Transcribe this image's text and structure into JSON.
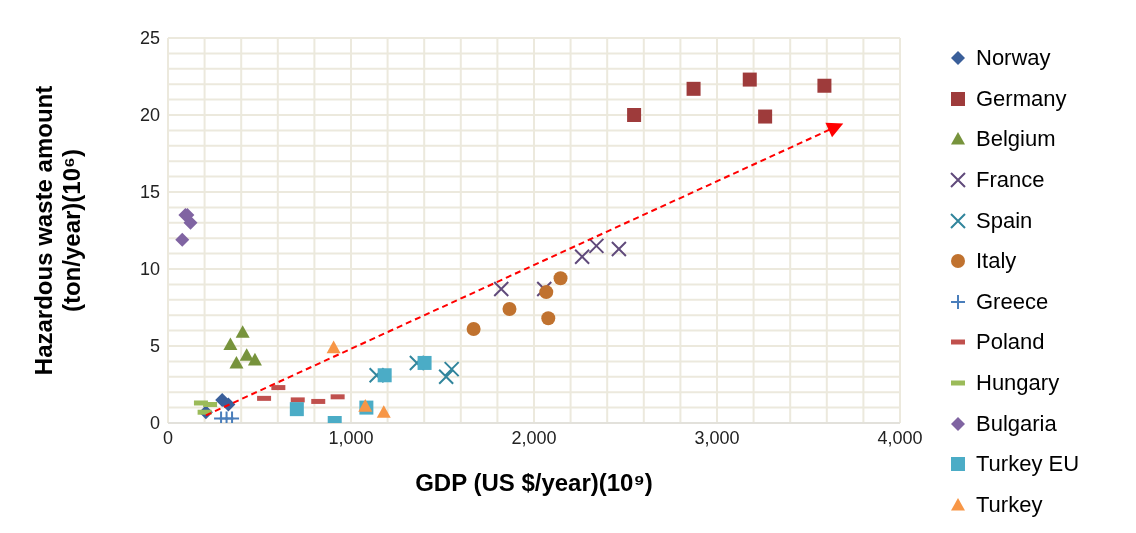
{
  "chart_data": {
    "type": "scatter",
    "xlabel": "GDP (US $/year)(10⁹)",
    "ylabel": "Hazardous waste  amount (ton/year)(10⁶)",
    "xlim": [
      0,
      4000
    ],
    "ylim": [
      0,
      25
    ],
    "xticks": [
      0,
      {
        "value": 200,
        "label": null
      },
      {
        "value": 400,
        "label": null
      },
      {
        "value": 600,
        "label": null
      },
      {
        "value": 800,
        "label": null
      },
      {
        "value": 1000,
        "label": "1,000"
      },
      {
        "value": 1200,
        "label": null
      },
      {
        "value": 1400,
        "label": null
      },
      {
        "value": 1600,
        "label": null
      },
      {
        "value": 1800,
        "label": null
      },
      {
        "value": 2000,
        "label": "2,000"
      },
      {
        "value": 2200,
        "label": null
      },
      {
        "value": 2400,
        "label": null
      },
      {
        "value": 2600,
        "label": null
      },
      {
        "value": 2800,
        "label": null
      },
      {
        "value": 3000,
        "label": "3,000"
      },
      {
        "value": 3200,
        "label": null
      },
      {
        "value": 3400,
        "label": null
      },
      {
        "value": 3600,
        "label": null
      },
      {
        "value": 3800,
        "label": null
      },
      {
        "value": 4000,
        "label": "4,000"
      }
    ],
    "yticks": [
      0,
      {
        "value": 1,
        "label": null
      },
      {
        "value": 2,
        "label": null
      },
      {
        "value": 3,
        "label": null
      },
      {
        "value": 4,
        "label": null
      },
      5,
      {
        "value": 6,
        "label": null
      },
      {
        "value": 7,
        "label": null
      },
      {
        "value": 8,
        "label": null
      },
      {
        "value": 9,
        "label": null
      },
      10,
      {
        "value": 11,
        "label": null
      },
      {
        "value": 12,
        "label": null
      },
      {
        "value": 13,
        "label": null
      },
      {
        "value": 14,
        "label": null
      },
      15,
      {
        "value": 16,
        "label": null
      },
      {
        "value": 17,
        "label": null
      },
      {
        "value": 18,
        "label": null
      },
      {
        "value": 19,
        "label": null
      },
      20,
      {
        "value": 21,
        "label": null
      },
      {
        "value": 22,
        "label": null
      },
      {
        "value": 23,
        "label": null
      },
      {
        "value": 24,
        "label": null
      },
      25
    ],
    "grid": true,
    "legend": "right",
    "series": [
      {
        "name": "Norway",
        "color": "#3a5f9a",
        "marker": "diamond",
        "x": [
          207,
          296,
          330
        ],
        "values": [
          0.7,
          1.5,
          1.2
        ]
      },
      {
        "name": "Germany",
        "color": "#9e3b3b",
        "marker": "square",
        "x": [
          2547,
          2872,
          3179,
          3263,
          3587
        ],
        "values": [
          20.0,
          21.7,
          22.3,
          19.9,
          21.9
        ]
      },
      {
        "name": "Belgium",
        "color": "#77933c",
        "marker": "triangle",
        "x": [
          341,
          408,
          430,
          374,
          475
        ],
        "values": [
          5.1,
          5.9,
          4.4,
          3.9,
          4.1
        ]
      },
      {
        "name": "France",
        "color": "#604a7b",
        "marker": "cross",
        "x": [
          1821,
          2056,
          2263,
          2341,
          2464
        ],
        "values": [
          8.7,
          8.7,
          10.8,
          11.5,
          11.3
        ]
      },
      {
        "name": "Spain",
        "color": "#31859c",
        "marker": "cross",
        "x": [
          1140,
          1360,
          1520,
          1550
        ],
        "values": [
          3.1,
          3.9,
          3.0,
          3.5
        ]
      },
      {
        "name": "Italy",
        "color": "#c0722f",
        "marker": "circle",
        "x": [
          1670,
          1866,
          2067,
          2078,
          2145
        ],
        "values": [
          6.1,
          7.4,
          8.5,
          6.8,
          9.4
        ]
      },
      {
        "name": "Greece",
        "color": "#4a7ebb",
        "marker": "plus",
        "x": [
          290,
          320,
          350
        ],
        "values": [
          0.3,
          0.3,
          0.3
        ]
      },
      {
        "name": "Poland",
        "color": "#c0504d",
        "x": [
          525,
          603,
          709,
          821,
          927
        ],
        "values": [
          1.6,
          2.3,
          1.5,
          1.4,
          1.7
        ]
      },
      {
        "name": "Hungary",
        "color": "#9bbb59",
        "x": [
          180,
          230,
          200
        ],
        "values": [
          1.3,
          1.2,
          0.7
        ]
      },
      {
        "name": "Bulgaria",
        "color": "#8064a2",
        "marker": "diamond",
        "x": [
          78,
          95,
          106,
          123
        ],
        "values": [
          11.9,
          13.5,
          13.5,
          13.0
        ]
      },
      {
        "name": "Turkey EU",
        "color": "#4bacc6",
        "marker": "square",
        "x": [
          704,
          911,
          1084,
          1184,
          1402
        ],
        "values": [
          0.9,
          0.0,
          1.0,
          3.1,
          3.9
        ]
      },
      {
        "name": "Turkey",
        "color": "#f79646",
        "marker": "triangle",
        "x": [
          905,
          1078,
          1179
        ],
        "values": [
          4.9,
          1.1,
          0.7
        ]
      }
    ]
  }
}
